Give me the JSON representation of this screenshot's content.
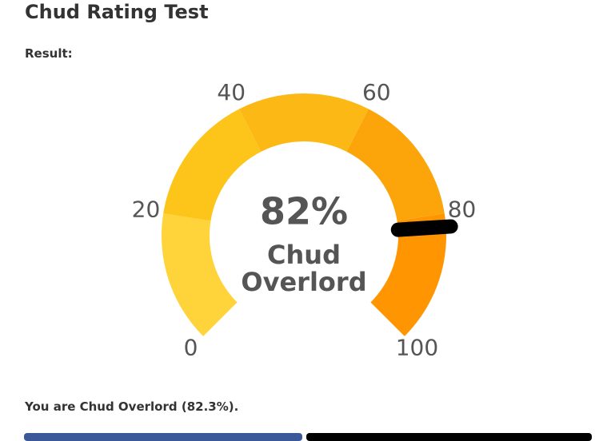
{
  "header": {
    "title": "Chud Rating Test",
    "result_label": "Result:"
  },
  "chart_data": {
    "type": "gauge",
    "lim": [
      0,
      100
    ],
    "ticks": [
      0,
      20,
      40,
      60,
      80,
      100
    ],
    "bands": [
      {
        "from": 0,
        "to": 20,
        "color": "#ffd43b"
      },
      {
        "from": 20,
        "to": 40,
        "color": "#fdc51a"
      },
      {
        "from": 40,
        "to": 60,
        "color": "#fcb814"
      },
      {
        "from": 60,
        "to": 80,
        "color": "#fba50b"
      },
      {
        "from": 80,
        "to": 100,
        "color": "#ff9500"
      }
    ],
    "values": [
      82
    ],
    "value_labels": [
      "82%"
    ],
    "label_lines": [
      "Chud",
      "Overlord"
    ],
    "needle_color": "#000000"
  },
  "result_text": "You are Chud Overlord (82.3%)."
}
